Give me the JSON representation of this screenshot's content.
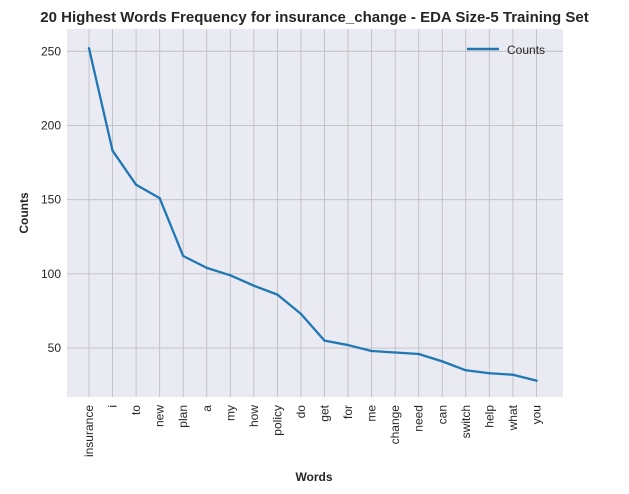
{
  "chart_data": {
    "type": "line",
    "title": "20 Highest Words Frequency for insurance_change - EDA Size-5 Training Set",
    "xlabel": "Words",
    "ylabel": "Counts",
    "categories": [
      "insurance",
      "i",
      "to",
      "new",
      "plan",
      "a",
      "my",
      "how",
      "policy",
      "do",
      "get",
      "for",
      "me",
      "change",
      "need",
      "can",
      "switch",
      "help",
      "what",
      "you"
    ],
    "series": [
      {
        "name": "Counts",
        "values": [
          252,
          183,
          160,
          151,
          112,
          104,
          99,
          92,
          86,
          73,
          55,
          52,
          48,
          47,
          46,
          41,
          35,
          33,
          32,
          28
        ],
        "color": "#1f77b4"
      }
    ],
    "ylim": [
      17,
      265
    ],
    "yticks": [
      50,
      100,
      150,
      200,
      250
    ],
    "grid": true,
    "legend_position": "top-right",
    "plot_background": "#eaeaf2",
    "grid_color": "#c0c0c0"
  }
}
